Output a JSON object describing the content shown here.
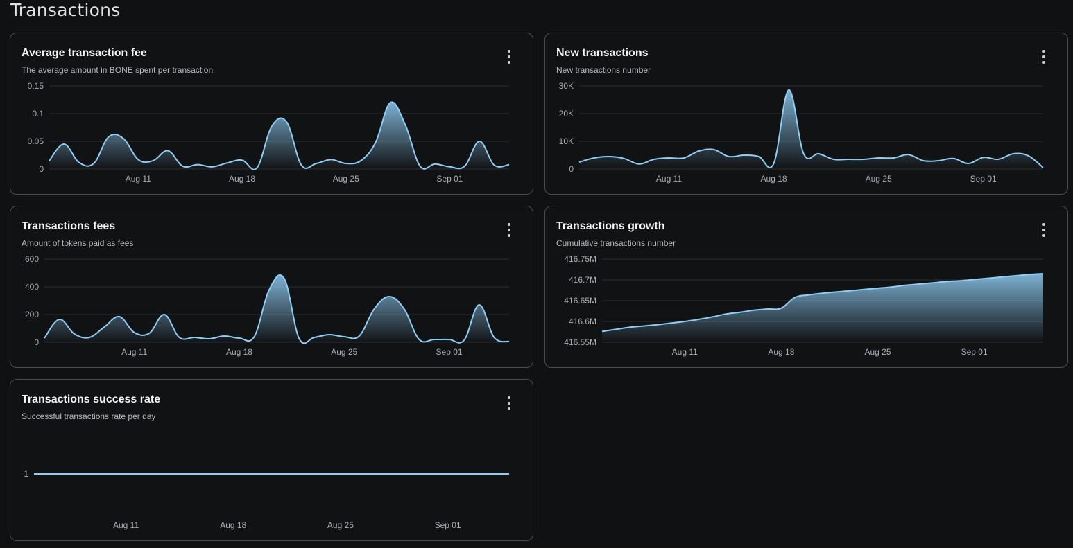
{
  "page": {
    "title": "Transactions"
  },
  "colors": {
    "line": "#90cdf4",
    "grid": "#2b2e33",
    "card_border": "#4a4e55",
    "background": "#101112"
  },
  "icons": {
    "menu": "vertical-ellipsis-icon"
  },
  "cards": [
    {
      "title": "Average transaction fee",
      "subtitle": "The average amount in BONE spent per transaction"
    },
    {
      "title": "New transactions",
      "subtitle": "New transactions number"
    },
    {
      "title": "Transactions fees",
      "subtitle": "Amount of tokens paid as fees"
    },
    {
      "title": "Transactions growth",
      "subtitle": "Cumulative transactions number"
    },
    {
      "title": "Transactions success rate",
      "subtitle": "Successful transactions rate per day"
    }
  ],
  "chart_data": [
    {
      "type": "area",
      "title": "Average transaction fee",
      "x_start": "Aug 5",
      "x_ticks": [
        "Aug 11",
        "Aug 18",
        "Aug 25",
        "Sep 01"
      ],
      "y_ticks": [
        "0.15",
        "0.1",
        "0.05",
        "0"
      ],
      "ylim": [
        0,
        0.15
      ],
      "grid": true,
      "values": [
        0.015,
        0.045,
        0.012,
        0.01,
        0.058,
        0.055,
        0.017,
        0.015,
        0.033,
        0.005,
        0.008,
        0.004,
        0.011,
        0.016,
        0.002,
        0.077,
        0.085,
        0.007,
        0.01,
        0.017,
        0.01,
        0.015,
        0.048,
        0.12,
        0.08,
        0.005,
        0.009,
        0.004,
        0.005,
        0.05,
        0.007,
        0.008
      ]
    },
    {
      "type": "area",
      "title": "New transactions",
      "x_start": "Aug 5",
      "x_ticks": [
        "Aug 11",
        "Aug 18",
        "Aug 25",
        "Sep 01"
      ],
      "y_ticks": [
        "30K",
        "20K",
        "10K",
        "0"
      ],
      "ylim": [
        0,
        30000
      ],
      "grid": true,
      "values": [
        2500,
        4000,
        4500,
        3800,
        1800,
        3500,
        4000,
        4000,
        6500,
        7000,
        4500,
        5000,
        4500,
        2000,
        28500,
        5500,
        5500,
        3500,
        3500,
        3500,
        4000,
        4000,
        5200,
        3000,
        3000,
        3800,
        2000,
        4200,
        3500,
        5500,
        4800,
        500
      ]
    },
    {
      "type": "area",
      "title": "Transactions fees",
      "x_start": "Aug 5",
      "x_ticks": [
        "Aug 11",
        "Aug 18",
        "Aug 25",
        "Sep 01"
      ],
      "y_ticks": [
        "600",
        "400",
        "200",
        "0"
      ],
      "ylim": [
        0,
        600
      ],
      "grid": true,
      "values": [
        30,
        165,
        60,
        35,
        110,
        185,
        70,
        65,
        200,
        35,
        35,
        25,
        45,
        30,
        40,
        380,
        460,
        25,
        35,
        55,
        40,
        45,
        240,
        330,
        240,
        20,
        20,
        20,
        15,
        270,
        35,
        5
      ]
    },
    {
      "type": "area",
      "title": "Transactions growth",
      "x_start": "Aug 5",
      "x_ticks": [
        "Aug 11",
        "Aug 18",
        "Aug 25",
        "Sep 01"
      ],
      "y_ticks": [
        "416.75M",
        "416.7M",
        "416.65M",
        "416.6M",
        "416.55M"
      ],
      "ylim": [
        416.55,
        416.75
      ],
      "y_unit": "M",
      "grid": true,
      "values": [
        416.576,
        416.581,
        416.586,
        416.589,
        416.592,
        416.596,
        416.6,
        416.605,
        416.611,
        416.618,
        416.622,
        416.627,
        416.63,
        416.632,
        416.658,
        416.664,
        416.668,
        416.671,
        416.674,
        416.677,
        416.68,
        416.683,
        416.687,
        416.69,
        416.693,
        416.696,
        416.698,
        416.701,
        416.704,
        416.707,
        416.71,
        416.713,
        416.715
      ]
    },
    {
      "type": "line",
      "title": "Transactions success rate",
      "x_start": "Aug 5",
      "x_ticks": [
        "Aug 11",
        "Aug 18",
        "Aug 25",
        "Sep 01"
      ],
      "y_ticks": [
        "1"
      ],
      "ylim": [
        0,
        2
      ],
      "grid": false,
      "values": [
        1,
        1,
        1,
        1,
        1,
        1,
        1,
        1,
        1,
        1,
        1,
        1,
        1,
        1,
        1,
        1,
        1,
        1,
        1,
        1,
        1,
        1,
        1,
        1,
        1,
        1,
        1,
        1,
        1,
        1,
        1,
        1
      ]
    }
  ]
}
